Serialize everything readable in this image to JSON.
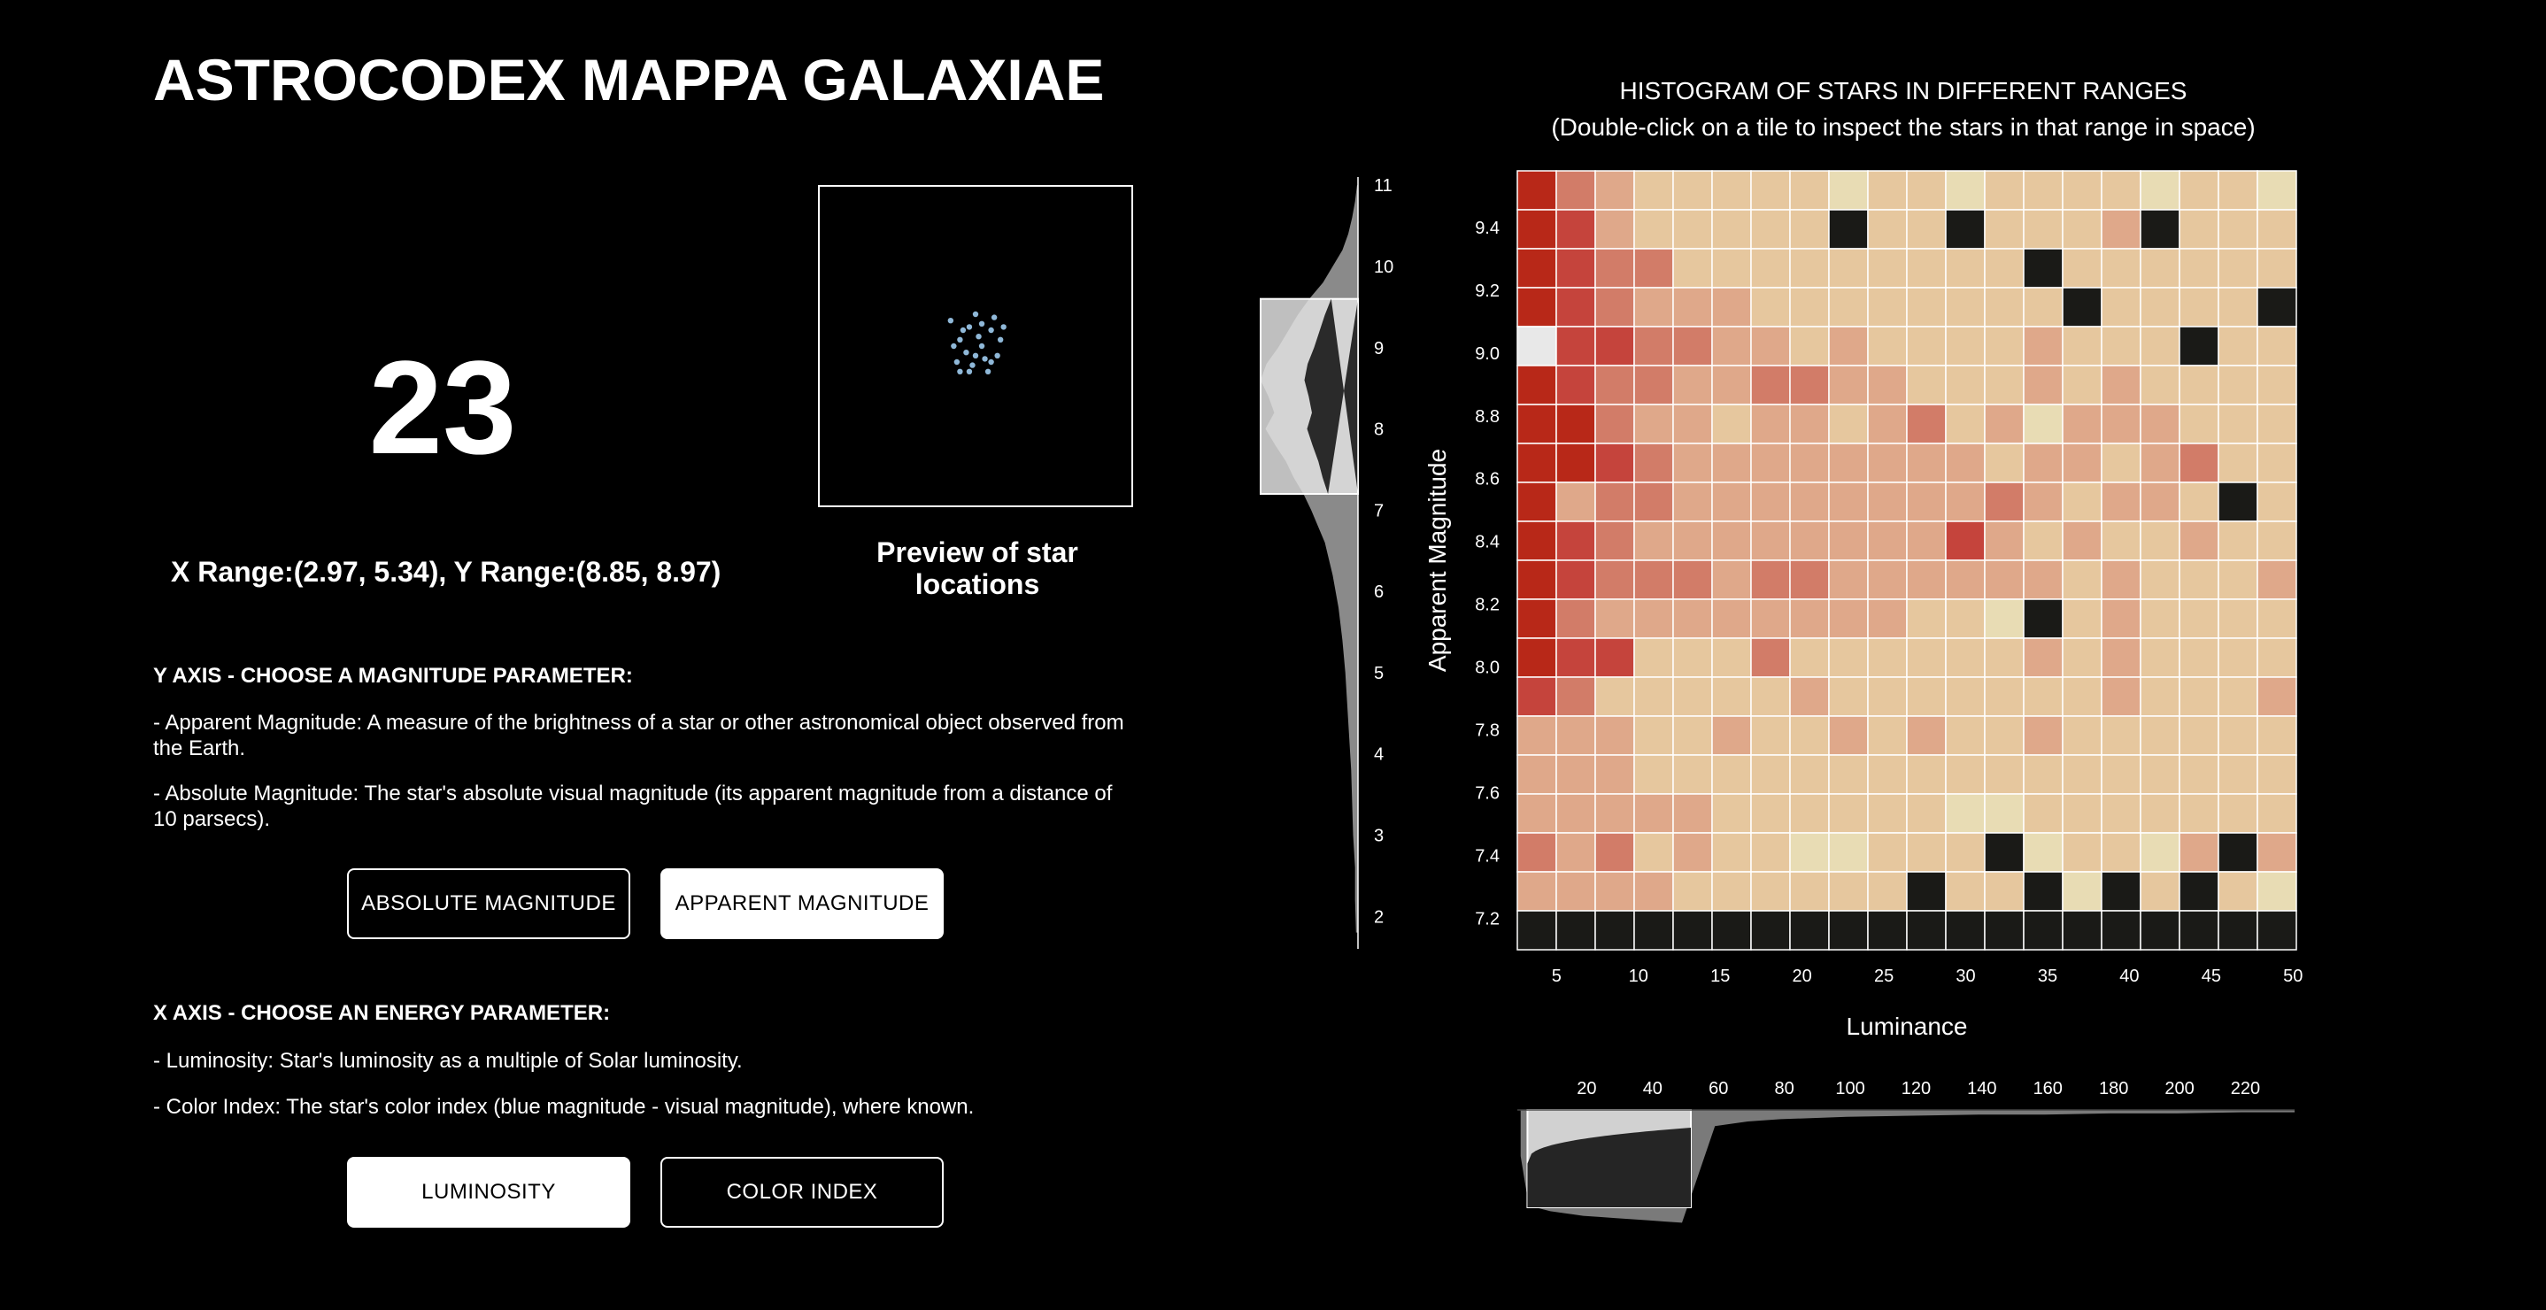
{
  "app": {
    "title": "ASTROCODEX MAPPA GALAXIAE"
  },
  "selection": {
    "count": "23",
    "range_text": "X Range:(2.97, 5.34), Y Range:(8.85, 8.97)",
    "preview_label": "Preview of star locations",
    "preview_points": [
      [
        0.42,
        0.42
      ],
      [
        0.45,
        0.48
      ],
      [
        0.48,
        0.44
      ],
      [
        0.5,
        0.4
      ],
      [
        0.52,
        0.5
      ],
      [
        0.55,
        0.45
      ],
      [
        0.53,
        0.54
      ],
      [
        0.47,
        0.52
      ],
      [
        0.44,
        0.55
      ],
      [
        0.58,
        0.48
      ],
      [
        0.56,
        0.41
      ],
      [
        0.49,
        0.56
      ],
      [
        0.51,
        0.47
      ],
      [
        0.46,
        0.45
      ],
      [
        0.57,
        0.53
      ],
      [
        0.54,
        0.58
      ],
      [
        0.43,
        0.5
      ],
      [
        0.5,
        0.53
      ],
      [
        0.59,
        0.44
      ],
      [
        0.48,
        0.58
      ],
      [
        0.52,
        0.43
      ],
      [
        0.55,
        0.55
      ],
      [
        0.45,
        0.58
      ]
    ],
    "preview_point_color": "#8fb8d8"
  },
  "y_axis_section": {
    "title": "Y AXIS - CHOOSE A MAGNITUDE PARAMETER:",
    "desc_apparent": "- Apparent Magnitude: A measure of the brightness of a star or other astronomical object observed from the Earth.",
    "desc_absolute": "- Absolute Magnitude: The star's absolute visual magnitude (its apparent magnitude from a distance of 10 parsecs).",
    "btn_absolute": "ABSOLUTE MAGNITUDE",
    "btn_apparent": "APPARENT MAGNITUDE",
    "selected": "APPARENT MAGNITUDE"
  },
  "x_axis_section": {
    "title": "X AXIS - CHOOSE AN ENERGY PARAMETER:",
    "desc_luminosity": "- Luminosity: Star's luminosity as a multiple of Solar luminosity.",
    "desc_color_index": "- Color Index: The star's color index (blue magnitude - visual magnitude), where known.",
    "btn_luminosity": "LUMINOSITY",
    "btn_color_index": "COLOR INDEX",
    "selected": "LUMINOSITY"
  },
  "histogram": {
    "title_line1": "HISTOGRAM OF STARS IN DIFFERENT RANGES",
    "title_line2": "(Double-click on a tile to inspect the stars in that range in space)"
  },
  "colors": {
    "empty_tile": "#1a1a17",
    "selected_tile": "#e8e8e8",
    "tile_border": "#ffffff",
    "scale": [
      "#e8dcb4",
      "#e6c79e",
      "#dfa88a",
      "#d27c68",
      "#c5443c",
      "#b82818"
    ]
  },
  "chart_data": [
    {
      "type": "heatmap",
      "xlabel": "Luminance",
      "ylabel": "Apparent Magnitude",
      "xlim": [
        2.6,
        50.2
      ],
      "ylim": [
        7.1,
        9.58
      ],
      "x_ticks": [
        5,
        10,
        15,
        20,
        25,
        30,
        35,
        40,
        45,
        50
      ],
      "y_ticks": [
        7.2,
        7.4,
        7.6,
        7.8,
        8.0,
        8.2,
        8.4,
        8.6,
        8.8,
        9.0,
        9.2,
        9.4
      ],
      "x_tick_labels": [
        "5",
        "10",
        "15",
        "20",
        "25",
        "30",
        "35",
        "40",
        "45",
        "50"
      ],
      "y_tick_labels": [
        "7.2",
        "7.4",
        "7.6",
        "7.8",
        "8.0",
        "8.2",
        "8.4",
        "8.6",
        "8.8",
        "9.0",
        "9.2",
        "9.4"
      ],
      "cols": 20,
      "rows": 20,
      "selected_cell": {
        "row": 4,
        "col": 0
      },
      "intensity_top_to_bottom": [
        [
          5,
          3,
          2,
          1,
          1,
          1,
          1,
          1,
          0,
          1,
          1,
          0,
          1,
          1,
          1,
          1,
          0,
          1,
          1,
          0
        ],
        [
          5,
          4,
          2,
          1,
          1,
          1,
          1,
          1,
          -1,
          1,
          1,
          -1,
          1,
          1,
          1,
          2,
          -1,
          1,
          1,
          1
        ],
        [
          5,
          4,
          3,
          3,
          1,
          1,
          1,
          1,
          1,
          1,
          1,
          1,
          1,
          -1,
          1,
          1,
          1,
          1,
          1,
          1
        ],
        [
          5,
          4,
          3,
          2,
          2,
          2,
          1,
          1,
          1,
          1,
          1,
          1,
          1,
          1,
          -1,
          1,
          1,
          1,
          1,
          -1
        ],
        [
          -2,
          4,
          4,
          3,
          3,
          2,
          2,
          1,
          2,
          1,
          1,
          1,
          1,
          2,
          1,
          1,
          1,
          -1,
          1,
          1
        ],
        [
          5,
          4,
          3,
          3,
          2,
          2,
          3,
          3,
          2,
          2,
          1,
          1,
          1,
          2,
          1,
          2,
          1,
          1,
          1,
          1
        ],
        [
          5,
          5,
          3,
          2,
          2,
          1,
          2,
          2,
          1,
          2,
          3,
          1,
          2,
          0,
          2,
          2,
          2,
          1,
          1,
          1
        ],
        [
          5,
          5,
          4,
          3,
          2,
          2,
          2,
          2,
          2,
          2,
          2,
          2,
          1,
          2,
          2,
          1,
          2,
          3,
          1,
          1
        ],
        [
          5,
          2,
          3,
          3,
          2,
          2,
          2,
          2,
          2,
          2,
          2,
          2,
          3,
          2,
          1,
          2,
          2,
          1,
          -1,
          1
        ],
        [
          5,
          4,
          3,
          2,
          2,
          2,
          2,
          2,
          2,
          2,
          2,
          4,
          2,
          1,
          2,
          1,
          1,
          2,
          1,
          1
        ],
        [
          5,
          4,
          3,
          3,
          3,
          2,
          3,
          3,
          2,
          2,
          2,
          2,
          2,
          2,
          1,
          2,
          1,
          1,
          1,
          2
        ],
        [
          5,
          3,
          2,
          2,
          2,
          2,
          2,
          2,
          2,
          2,
          1,
          1,
          0,
          -1,
          1,
          2,
          1,
          1,
          1,
          1
        ],
        [
          5,
          4,
          4,
          1,
          1,
          1,
          3,
          1,
          1,
          1,
          1,
          1,
          1,
          2,
          1,
          2,
          1,
          1,
          1,
          1
        ],
        [
          4,
          3,
          1,
          1,
          1,
          1,
          1,
          2,
          1,
          1,
          1,
          1,
          1,
          1,
          1,
          2,
          1,
          1,
          1,
          2
        ],
        [
          2,
          2,
          2,
          1,
          1,
          2,
          1,
          1,
          2,
          1,
          2,
          1,
          1,
          2,
          1,
          1,
          1,
          1,
          1,
          1
        ],
        [
          2,
          2,
          2,
          1,
          1,
          1,
          1,
          1,
          1,
          1,
          1,
          1,
          1,
          1,
          1,
          1,
          1,
          1,
          1,
          1
        ],
        [
          2,
          2,
          2,
          2,
          2,
          1,
          1,
          1,
          1,
          1,
          1,
          0,
          0,
          1,
          1,
          1,
          1,
          1,
          1,
          1
        ],
        [
          3,
          2,
          3,
          1,
          2,
          1,
          1,
          0,
          0,
          1,
          1,
          1,
          -1,
          0,
          1,
          1,
          0,
          2,
          -1,
          2
        ],
        [
          2,
          2,
          2,
          2,
          1,
          1,
          1,
          1,
          1,
          1,
          -1,
          1,
          1,
          -1,
          0,
          -1,
          1,
          -1,
          1,
          0
        ],
        [
          -1,
          -1,
          -1,
          -1,
          -1,
          -1,
          -1,
          -1,
          -1,
          -1,
          -1,
          -1,
          -1,
          -1,
          -1,
          -1,
          -1,
          -1,
          -1,
          -1
        ]
      ]
    },
    {
      "type": "area",
      "orientation": "vertical",
      "axis_ticks": [
        2,
        3,
        4,
        5,
        6,
        7,
        8,
        9,
        10,
        11
      ],
      "axis_tick_labels": [
        "2",
        "3",
        "4",
        "5",
        "6",
        "7",
        "8",
        "9",
        "10",
        "11"
      ],
      "range": [
        1.6,
        11.1
      ],
      "brush_range": [
        7.2,
        9.6
      ],
      "y": [
        1.8,
        2.2,
        2.6,
        3.0,
        3.4,
        3.8,
        4.2,
        4.6,
        5.0,
        5.4,
        5.8,
        6.2,
        6.6,
        7.0,
        7.2,
        7.4,
        7.6,
        7.8,
        8.0,
        8.2,
        8.4,
        8.6,
        8.8,
        9.0,
        9.2,
        9.4,
        9.6,
        9.8,
        10.0,
        10.2,
        10.4,
        10.6,
        10.8,
        11.0
      ],
      "density": [
        0.02,
        0.03,
        0.03,
        0.05,
        0.06,
        0.07,
        0.09,
        0.11,
        0.13,
        0.16,
        0.2,
        0.26,
        0.34,
        0.48,
        0.56,
        0.66,
        0.74,
        0.85,
        0.95,
        0.86,
        0.92,
        1.0,
        0.94,
        0.82,
        0.72,
        0.62,
        0.5,
        0.36,
        0.26,
        0.16,
        0.1,
        0.06,
        0.03,
        0.01
      ]
    },
    {
      "type": "area",
      "orientation": "horizontal",
      "axis_ticks": [
        20,
        40,
        60,
        80,
        100,
        120,
        140,
        160,
        180,
        200,
        220
      ],
      "axis_tick_labels": [
        "20",
        "40",
        "60",
        "80",
        "100",
        "120",
        "140",
        "160",
        "180",
        "200",
        "220"
      ],
      "range": [
        0,
        236
      ],
      "brush_range": [
        2,
        50
      ],
      "x": [
        1,
        3,
        6,
        10,
        15,
        20,
        25,
        30,
        35,
        40,
        45,
        50,
        60,
        70,
        80,
        100,
        120,
        140,
        160,
        180,
        200,
        220,
        236
      ],
      "density": [
        0.4,
        0.75,
        0.85,
        0.88,
        0.9,
        0.92,
        0.93,
        0.94,
        0.95,
        0.96,
        0.97,
        0.98,
        0.14,
        0.1,
        0.08,
        0.06,
        0.05,
        0.04,
        0.04,
        0.03,
        0.03,
        0.02,
        0.02
      ]
    }
  ]
}
